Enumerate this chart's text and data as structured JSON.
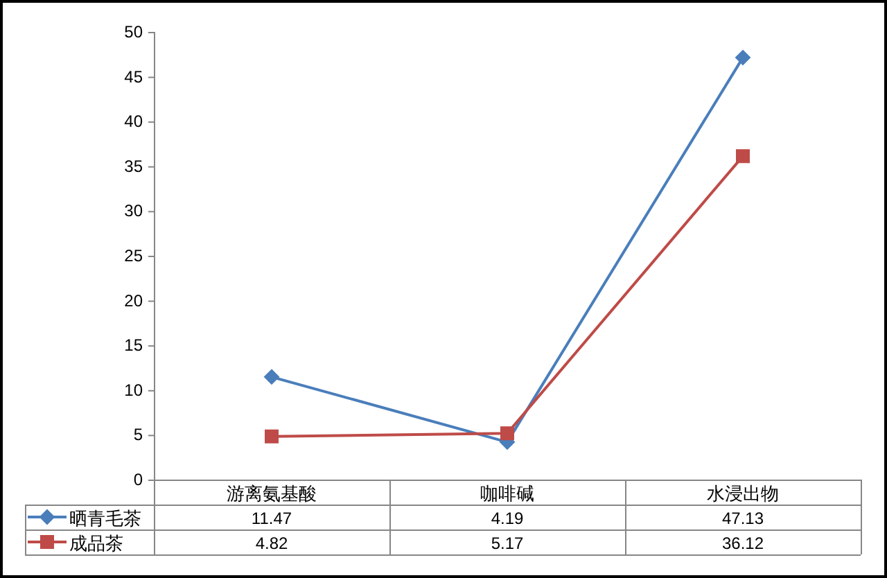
{
  "chart_data": {
    "type": "line",
    "categories": [
      "游离氨基酸",
      "咖啡碱",
      "水浸出物"
    ],
    "series": [
      {
        "name": "晒青毛茶",
        "color": "#4a7ebb",
        "marker": "diamond",
        "values": [
          11.47,
          4.19,
          47.13
        ]
      },
      {
        "name": "成品茶",
        "color": "#be4b48",
        "marker": "square",
        "values": [
          4.82,
          5.17,
          36.12
        ]
      }
    ],
    "ylim": [
      0,
      50
    ],
    "yticks": [
      0,
      5,
      10,
      15,
      20,
      25,
      30,
      35,
      40,
      45,
      50
    ],
    "data_labels": true,
    "legend": "bottom",
    "grid": false
  }
}
